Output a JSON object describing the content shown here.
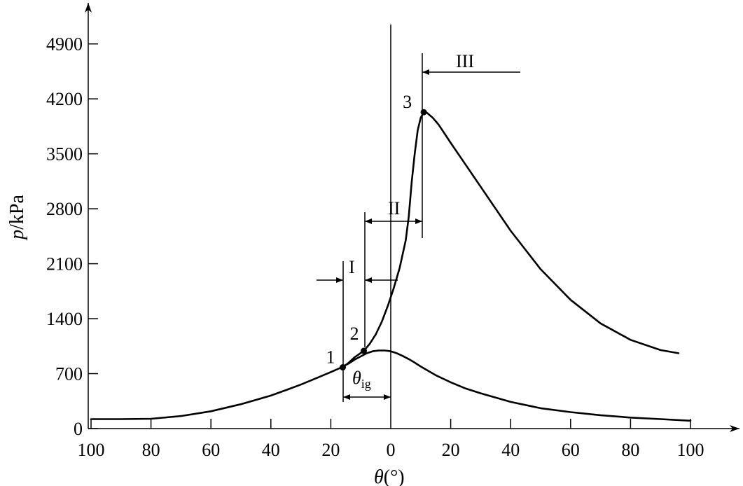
{
  "chart_data": {
    "type": "line",
    "title": "",
    "xlabel_main": "θ",
    "xlabel_unit": "(°)",
    "ylabel_main": "p",
    "ylabel_unit": "/kPa",
    "x_tick_labels": [
      "100",
      "80",
      "60",
      "40",
      "20",
      "0",
      "20",
      "40",
      "60",
      "80",
      "100"
    ],
    "x_tick_values": [
      -100,
      -80,
      -60,
      -40,
      -20,
      0,
      20,
      40,
      60,
      80,
      100
    ],
    "y_ticks": [
      0,
      700,
      1400,
      2100,
      2800,
      3500,
      4200,
      4900
    ],
    "xlim": [
      -102,
      118
    ],
    "ylim": [
      0,
      5300
    ],
    "grid": false,
    "series": [
      {
        "x": [
          -100,
          -90,
          -80,
          -70,
          -60,
          -50,
          -40,
          -35,
          -30,
          -25,
          -20,
          -17,
          -14,
          -12,
          -10,
          -8,
          -6,
          -4,
          -2,
          0,
          2,
          4,
          6,
          8,
          10,
          15,
          20,
          25,
          30,
          40,
          50,
          60,
          70,
          80,
          90,
          100
        ],
        "y": [
          120,
          120,
          125,
          160,
          220,
          310,
          420,
          490,
          560,
          640,
          720,
          770,
          830,
          880,
          920,
          960,
          985,
          995,
          995,
          985,
          960,
          925,
          885,
          840,
          790,
          680,
          590,
          510,
          450,
          340,
          260,
          210,
          170,
          140,
          120,
          100
        ]
      },
      {
        "x": [
          -16,
          -14,
          -12,
          -9,
          -7,
          -5,
          -3,
          -1,
          1,
          3,
          5,
          6,
          7,
          8,
          9,
          10,
          11,
          12,
          14,
          16,
          20,
          25,
          30,
          40,
          50,
          60,
          70,
          80,
          90,
          96
        ],
        "y": [
          780,
          840,
          910,
          990,
          1080,
          1200,
          1360,
          1560,
          1790,
          2050,
          2400,
          2700,
          3150,
          3500,
          3800,
          3960,
          4030,
          4025,
          3960,
          3870,
          3640,
          3360,
          3080,
          2520,
          2030,
          1640,
          1340,
          1130,
          1000,
          960
        ]
      }
    ],
    "points": [
      {
        "label": "1",
        "x": -16,
        "y": 780
      },
      {
        "label": "2",
        "x": -9,
        "y": 990
      },
      {
        "label": "3",
        "x": 11,
        "y": 4030
      }
    ],
    "annotations": {
      "theta_ig_main": "θ",
      "theta_ig_sub": "ig",
      "stage_1": "I",
      "stage_2": "II",
      "stage_3": "III"
    }
  }
}
